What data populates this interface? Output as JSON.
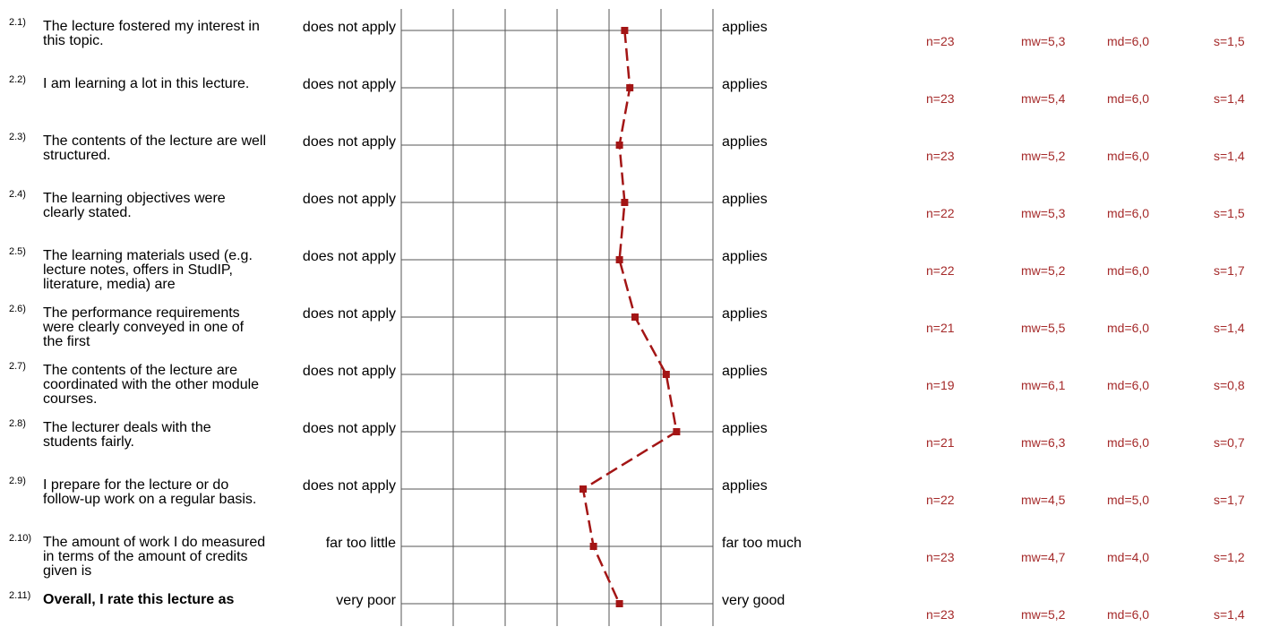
{
  "chart_data": {
    "type": "line",
    "scale": {
      "min": 1,
      "max": 7
    },
    "grid": true,
    "series": [
      {
        "values": [
          5.3,
          5.4,
          5.2,
          5.3,
          5.2,
          5.5,
          6.1,
          6.3,
          4.5,
          4.7,
          5.2
        ]
      }
    ],
    "items": [
      {
        "num": "2.1)",
        "text": "The lecture fostered my interest in this topic.",
        "bold": false,
        "left_pole": "does not apply",
        "right_pole": "applies",
        "n": "n=23",
        "mw": "mw=5,3",
        "md": "md=6,0",
        "s": "s=1,5"
      },
      {
        "num": "2.2)",
        "text": "I am learning a lot in this lecture.",
        "bold": false,
        "left_pole": "does not apply",
        "right_pole": "applies",
        "n": "n=23",
        "mw": "mw=5,4",
        "md": "md=6,0",
        "s": "s=1,4"
      },
      {
        "num": "2.3)",
        "text": "The contents of the lecture are well structured.",
        "bold": false,
        "left_pole": "does not apply",
        "right_pole": "applies",
        "n": "n=23",
        "mw": "mw=5,2",
        "md": "md=6,0",
        "s": "s=1,4"
      },
      {
        "num": "2.4)",
        "text": "The learning objectives were clearly stated.",
        "bold": false,
        "left_pole": "does not apply",
        "right_pole": "applies",
        "n": "n=22",
        "mw": "mw=5,3",
        "md": "md=6,0",
        "s": "s=1,5"
      },
      {
        "num": "2.5)",
        "text": "The learning materials used (e.g. lecture notes, offers in StudIP, literature, media) are",
        "bold": false,
        "left_pole": "does not apply",
        "right_pole": "applies",
        "n": "n=22",
        "mw": "mw=5,2",
        "md": "md=6,0",
        "s": "s=1,7"
      },
      {
        "num": "2.6)",
        "text": "The performance requirements were clearly conveyed in one of the first",
        "bold": false,
        "left_pole": "does not apply",
        "right_pole": "applies",
        "n": "n=21",
        "mw": "mw=5,5",
        "md": "md=6,0",
        "s": "s=1,4"
      },
      {
        "num": "2.7)",
        "text": "The contents of the lecture are coordinated with the other module courses.",
        "bold": false,
        "left_pole": "does not apply",
        "right_pole": "applies",
        "n": "n=19",
        "mw": "mw=6,1",
        "md": "md=6,0",
        "s": "s=0,8"
      },
      {
        "num": "2.8)",
        "text": "The lecturer deals with the students fairly.",
        "bold": false,
        "left_pole": "does not apply",
        "right_pole": "applies",
        "n": "n=21",
        "mw": "mw=6,3",
        "md": "md=6,0",
        "s": "s=0,7"
      },
      {
        "num": "2.9)",
        "text": "I prepare for the lecture or do follow-up work on a regular basis.",
        "bold": false,
        "left_pole": "does not apply",
        "right_pole": "applies",
        "n": "n=22",
        "mw": "mw=4,5",
        "md": "md=5,0",
        "s": "s=1,7"
      },
      {
        "num": "2.10)",
        "text": "The amount of work I do measured in terms of the amount of credits given is",
        "bold": false,
        "left_pole": "far too little",
        "right_pole": "far too much",
        "n": "n=23",
        "mw": "mw=4,7",
        "md": "md=4,0",
        "s": "s=1,2"
      },
      {
        "num": "2.11)",
        "text": "Overall, I rate this lecture as",
        "bold": true,
        "left_pole": "very poor",
        "right_pole": "very good",
        "n": "n=23",
        "mw": "mw=5,2",
        "md": "md=6,0",
        "s": "s=1,4"
      }
    ]
  },
  "colors": {
    "series": "#a31515",
    "stats": "#a52a2a",
    "grid": "#555555"
  }
}
